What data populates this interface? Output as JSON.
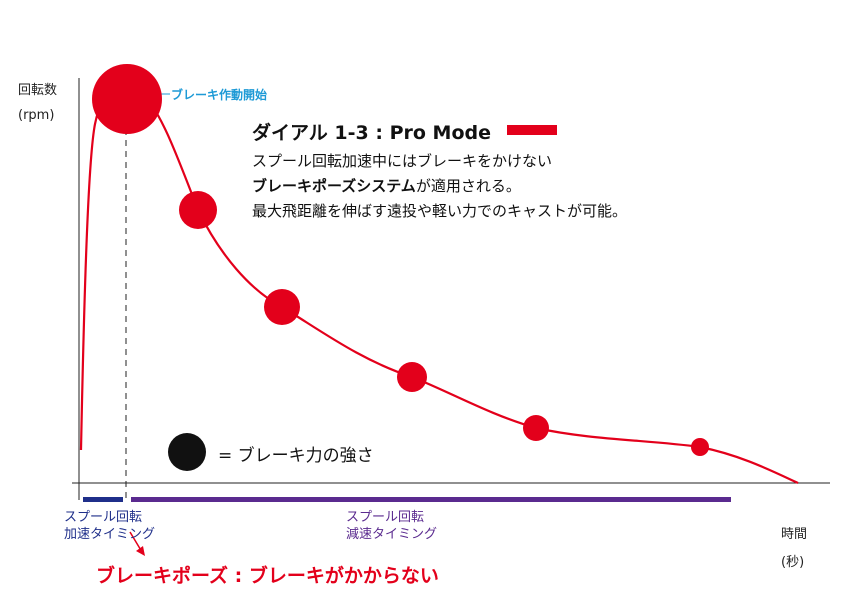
{
  "chart_data": {
    "type": "line",
    "ylabel": "回転数",
    "yunit": "(rpm)",
    "xlabel": "時間",
    "xunit": "(秒)",
    "title": "ダイアル 1-3 : Pro Mode",
    "title_color": "#e3001b",
    "brake_start_label": "ブレーキ作動開始",
    "brake_start_color": "#1e9ad6",
    "description": {
      "line1": "スプール回転加速中にはブレーキをかけない",
      "line2_bold": "ブレーキポーズシステム",
      "line2_rest": "が適用される。",
      "line3": "最大飛距離を伸ばす遠投や軽い力でのキャストが可能。"
    },
    "legend": {
      "symbol": "black-circle",
      "text": "= ブレーキ力の強さ"
    },
    "phases": [
      {
        "label1": "スプール回転",
        "label2": "加速タイミング",
        "color": "#1f2f8a"
      },
      {
        "label1": "スプール回転",
        "label2": "減速タイミング",
        "color": "#5a2a8f"
      }
    ],
    "footer": "ブレーキポーズ : ブレーキがかからない",
    "curve_color": "#e3001b",
    "brake_strength": [
      1.0,
      0.46,
      0.44,
      0.38,
      0.33,
      0.22
    ]
  }
}
